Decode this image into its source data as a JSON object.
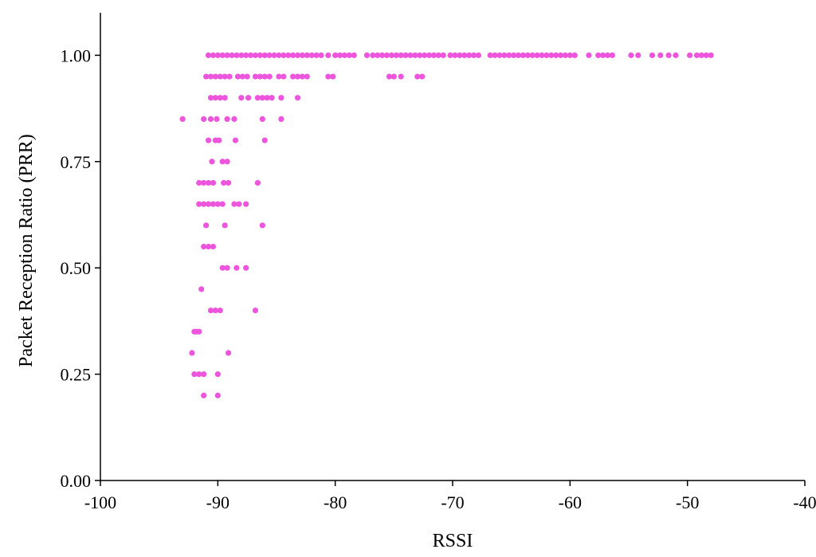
{
  "chart_data": {
    "type": "scatter",
    "xlabel": "RSSI",
    "ylabel": "Packet Reception Ratio (PRR)",
    "xlim": [
      -100,
      -40
    ],
    "ylim": [
      0,
      1.1
    ],
    "grid": false,
    "x_ticks": [
      -100,
      -90,
      -80,
      -70,
      -60,
      -50,
      -40
    ],
    "x_tick_labels": [
      "-100",
      "-90",
      "-80",
      "-70",
      "-60",
      "-50",
      "-40"
    ],
    "y_ticks": [
      0,
      0.25,
      0.5,
      0.75,
      1.0
    ],
    "y_tick_labels": [
      "0.00",
      "0.25",
      "0.50",
      "0.75",
      "1.00"
    ],
    "series": [
      {
        "color": "#ee55dd",
        "points": [
          [
            -90.8,
            1.0
          ],
          [
            -90.4,
            1.0
          ],
          [
            -90.0,
            1.0
          ],
          [
            -89.6,
            1.0
          ],
          [
            -89.2,
            1.0
          ],
          [
            -88.8,
            1.0
          ],
          [
            -88.4,
            1.0
          ],
          [
            -88.0,
            1.0
          ],
          [
            -87.6,
            1.0
          ],
          [
            -87.2,
            1.0
          ],
          [
            -86.8,
            1.0
          ],
          [
            -86.4,
            1.0
          ],
          [
            -86.0,
            1.0
          ],
          [
            -85.6,
            1.0
          ],
          [
            -85.2,
            1.0
          ],
          [
            -84.8,
            1.0
          ],
          [
            -84.4,
            1.0
          ],
          [
            -84.0,
            1.0
          ],
          [
            -83.6,
            1.0
          ],
          [
            -83.2,
            1.0
          ],
          [
            -82.8,
            1.0
          ],
          [
            -82.4,
            1.0
          ],
          [
            -82.0,
            1.0
          ],
          [
            -81.6,
            1.0
          ],
          [
            -81.2,
            1.0
          ],
          [
            -80.6,
            1.0
          ],
          [
            -80.0,
            1.0
          ],
          [
            -79.6,
            1.0
          ],
          [
            -79.2,
            1.0
          ],
          [
            -78.8,
            1.0
          ],
          [
            -78.4,
            1.0
          ],
          [
            -77.3,
            1.0
          ],
          [
            -76.8,
            1.0
          ],
          [
            -76.4,
            1.0
          ],
          [
            -76.0,
            1.0
          ],
          [
            -75.6,
            1.0
          ],
          [
            -75.2,
            1.0
          ],
          [
            -74.8,
            1.0
          ],
          [
            -74.4,
            1.0
          ],
          [
            -74.0,
            1.0
          ],
          [
            -73.6,
            1.0
          ],
          [
            -73.2,
            1.0
          ],
          [
            -72.8,
            1.0
          ],
          [
            -72.4,
            1.0
          ],
          [
            -72.0,
            1.0
          ],
          [
            -71.6,
            1.0
          ],
          [
            -71.2,
            1.0
          ],
          [
            -70.8,
            1.0
          ],
          [
            -70.2,
            1.0
          ],
          [
            -69.8,
            1.0
          ],
          [
            -69.4,
            1.0
          ],
          [
            -69.0,
            1.0
          ],
          [
            -68.6,
            1.0
          ],
          [
            -68.2,
            1.0
          ],
          [
            -67.8,
            1.0
          ],
          [
            -66.8,
            1.0
          ],
          [
            -66.4,
            1.0
          ],
          [
            -66.0,
            1.0
          ],
          [
            -65.6,
            1.0
          ],
          [
            -65.2,
            1.0
          ],
          [
            -64.8,
            1.0
          ],
          [
            -64.4,
            1.0
          ],
          [
            -64.0,
            1.0
          ],
          [
            -63.6,
            1.0
          ],
          [
            -63.2,
            1.0
          ],
          [
            -62.8,
            1.0
          ],
          [
            -62.4,
            1.0
          ],
          [
            -62.0,
            1.0
          ],
          [
            -61.6,
            1.0
          ],
          [
            -61.2,
            1.0
          ],
          [
            -60.8,
            1.0
          ],
          [
            -60.4,
            1.0
          ],
          [
            -60.0,
            1.0
          ],
          [
            -59.6,
            1.0
          ],
          [
            -58.4,
            1.0
          ],
          [
            -57.6,
            1.0
          ],
          [
            -57.2,
            1.0
          ],
          [
            -56.8,
            1.0
          ],
          [
            -56.4,
            1.0
          ],
          [
            -54.8,
            1.0
          ],
          [
            -54.2,
            1.0
          ],
          [
            -53.0,
            1.0
          ],
          [
            -52.3,
            1.0
          ],
          [
            -51.6,
            1.0
          ],
          [
            -51.0,
            1.0
          ],
          [
            -49.8,
            1.0
          ],
          [
            -49.2,
            1.0
          ],
          [
            -48.8,
            1.0
          ],
          [
            -48.4,
            1.0
          ],
          [
            -48.0,
            1.0
          ],
          [
            -91.0,
            0.95
          ],
          [
            -90.6,
            0.95
          ],
          [
            -90.2,
            0.95
          ],
          [
            -89.8,
            0.95
          ],
          [
            -89.4,
            0.95
          ],
          [
            -89.0,
            0.95
          ],
          [
            -88.3,
            0.95
          ],
          [
            -87.9,
            0.95
          ],
          [
            -87.5,
            0.95
          ],
          [
            -86.8,
            0.95
          ],
          [
            -86.4,
            0.95
          ],
          [
            -86.0,
            0.95
          ],
          [
            -85.6,
            0.95
          ],
          [
            -84.8,
            0.95
          ],
          [
            -84.4,
            0.95
          ],
          [
            -83.6,
            0.95
          ],
          [
            -83.2,
            0.95
          ],
          [
            -82.8,
            0.95
          ],
          [
            -82.4,
            0.95
          ],
          [
            -80.6,
            0.95
          ],
          [
            -80.2,
            0.95
          ],
          [
            -75.4,
            0.95
          ],
          [
            -75.0,
            0.95
          ],
          [
            -74.4,
            0.95
          ],
          [
            -73.0,
            0.95
          ],
          [
            -72.6,
            0.95
          ],
          [
            -90.6,
            0.9
          ],
          [
            -90.2,
            0.9
          ],
          [
            -89.8,
            0.9
          ],
          [
            -89.4,
            0.9
          ],
          [
            -88.0,
            0.9
          ],
          [
            -87.4,
            0.9
          ],
          [
            -86.6,
            0.9
          ],
          [
            -86.2,
            0.9
          ],
          [
            -85.8,
            0.9
          ],
          [
            -85.4,
            0.9
          ],
          [
            -84.6,
            0.9
          ],
          [
            -83.2,
            0.9
          ],
          [
            -93.0,
            0.85
          ],
          [
            -91.2,
            0.85
          ],
          [
            -90.6,
            0.85
          ],
          [
            -90.1,
            0.85
          ],
          [
            -89.2,
            0.85
          ],
          [
            -88.6,
            0.85
          ],
          [
            -86.2,
            0.85
          ],
          [
            -84.6,
            0.85
          ],
          [
            -90.8,
            0.8
          ],
          [
            -90.2,
            0.8
          ],
          [
            -89.9,
            0.8
          ],
          [
            -88.5,
            0.8
          ],
          [
            -86.0,
            0.8
          ],
          [
            -90.5,
            0.75
          ],
          [
            -89.6,
            0.75
          ],
          [
            -89.2,
            0.75
          ],
          [
            -91.6,
            0.7
          ],
          [
            -91.2,
            0.7
          ],
          [
            -90.8,
            0.7
          ],
          [
            -90.4,
            0.7
          ],
          [
            -89.5,
            0.7
          ],
          [
            -89.1,
            0.7
          ],
          [
            -86.6,
            0.7
          ],
          [
            -91.6,
            0.65
          ],
          [
            -91.2,
            0.65
          ],
          [
            -90.8,
            0.65
          ],
          [
            -90.4,
            0.65
          ],
          [
            -90.0,
            0.65
          ],
          [
            -89.6,
            0.65
          ],
          [
            -88.6,
            0.65
          ],
          [
            -88.2,
            0.65
          ],
          [
            -87.6,
            0.65
          ],
          [
            -91.0,
            0.6
          ],
          [
            -89.4,
            0.6
          ],
          [
            -86.2,
            0.6
          ],
          [
            -91.2,
            0.55
          ],
          [
            -90.8,
            0.55
          ],
          [
            -90.4,
            0.55
          ],
          [
            -89.6,
            0.5
          ],
          [
            -89.2,
            0.5
          ],
          [
            -88.4,
            0.5
          ],
          [
            -87.6,
            0.5
          ],
          [
            -91.4,
            0.45
          ],
          [
            -90.6,
            0.4
          ],
          [
            -90.2,
            0.4
          ],
          [
            -89.8,
            0.4
          ],
          [
            -86.8,
            0.4
          ],
          [
            -92.0,
            0.35
          ],
          [
            -91.8,
            0.35
          ],
          [
            -91.6,
            0.35
          ],
          [
            -92.2,
            0.3
          ],
          [
            -89.1,
            0.3
          ],
          [
            -92.0,
            0.25
          ],
          [
            -91.6,
            0.25
          ],
          [
            -91.2,
            0.25
          ],
          [
            -90.0,
            0.25
          ],
          [
            -91.2,
            0.2
          ],
          [
            -90.0,
            0.2
          ]
        ]
      }
    ]
  }
}
